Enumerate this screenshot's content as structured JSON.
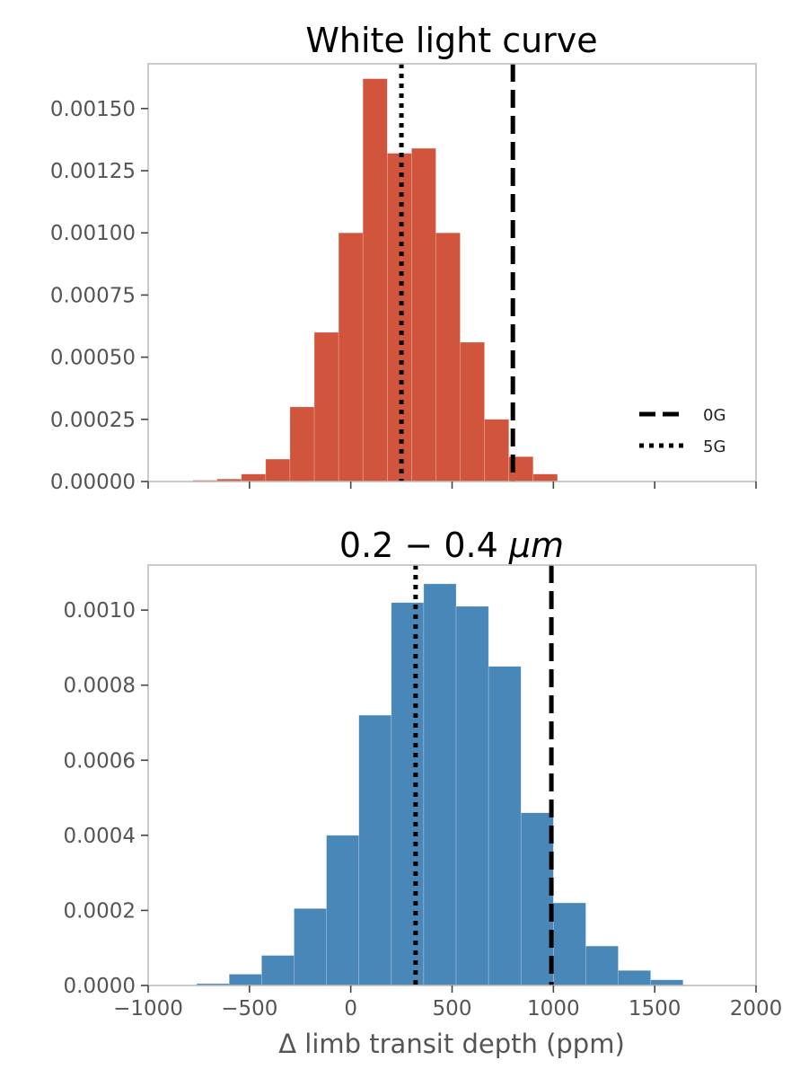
{
  "colors": {
    "top_bars": "#d1553c",
    "bottom_bars": "#4a87b9",
    "reference_lines": "#000000"
  },
  "xaxis": {
    "label": "Δ limb transit depth (ppm)",
    "ticks": [
      "−1000",
      "−500",
      "0",
      "500",
      "1000",
      "1500",
      "2000"
    ]
  },
  "chart_data": [
    {
      "type": "histogram",
      "title": "White light curve",
      "xlabel": "",
      "ylabel": "",
      "xlim": [
        -1000,
        2000
      ],
      "ylim": [
        0,
        0.00168
      ],
      "x_tick_values": [
        -1000,
        -500,
        0,
        500,
        1000,
        1500,
        2000
      ],
      "y_tick_values": [
        0,
        0.00025,
        0.0005,
        0.00075,
        0.001,
        0.00125,
        0.0015
      ],
      "y_tick_labels": [
        "0.00000",
        "0.00025",
        "0.00050",
        "0.00075",
        "0.00100",
        "0.00125",
        "0.00150"
      ],
      "bin_edges": [
        -780,
        -660,
        -540,
        -420,
        -300,
        -180,
        -60,
        60,
        180,
        300,
        420,
        540,
        660,
        780,
        900,
        1020
      ],
      "values": [
        5e-06,
        1e-05,
        3e-05,
        9e-05,
        0.0003,
        0.0006,
        0.001,
        0.00162,
        0.00132,
        0.00134,
        0.001,
        0.00056,
        0.00025,
        0.0001,
        3e-05
      ],
      "reference_lines": [
        {
          "label": "0G",
          "x": 800,
          "style": "dashed"
        },
        {
          "label": "5G",
          "x": 250,
          "style": "dotted"
        }
      ],
      "legend": {
        "position": "lower-right",
        "entries": [
          "0G",
          "5G"
        ]
      }
    },
    {
      "type": "histogram",
      "title": "0.2 − 0.4 μm",
      "title_parts": {
        "main": "0.2 − 0.4 ",
        "unit": "μm"
      },
      "xlabel": "Δ limb transit depth (ppm)",
      "ylabel": "",
      "xlim": [
        -1000,
        2000
      ],
      "ylim": [
        0,
        0.00112
      ],
      "x_tick_values": [
        -1000,
        -500,
        0,
        500,
        1000,
        1500,
        2000
      ],
      "x_tick_labels": [
        "−1000",
        "−500",
        "0",
        "500",
        "1000",
        "1500",
        "2000"
      ],
      "y_tick_values": [
        0,
        0.0002,
        0.0004,
        0.0006,
        0.0008,
        0.001
      ],
      "y_tick_labels": [
        "0.0000",
        "0.0002",
        "0.0004",
        "0.0006",
        "0.0008",
        "0.0010"
      ],
      "bin_edges": [
        -760,
        -600,
        -440,
        -280,
        -120,
        40,
        200,
        360,
        520,
        680,
        840,
        1000,
        1160,
        1320,
        1480,
        1640
      ],
      "values": [
        5e-06,
        3e-05,
        8e-05,
        0.000205,
        0.0004,
        0.00072,
        0.00102,
        0.00107,
        0.00101,
        0.00085,
        0.00046,
        0.00022,
        0.000105,
        4e-05,
        1.5e-05
      ],
      "reference_lines": [
        {
          "label": "0G",
          "x": 990,
          "style": "dashed"
        },
        {
          "label": "5G",
          "x": 320,
          "style": "dotted"
        }
      ]
    }
  ]
}
